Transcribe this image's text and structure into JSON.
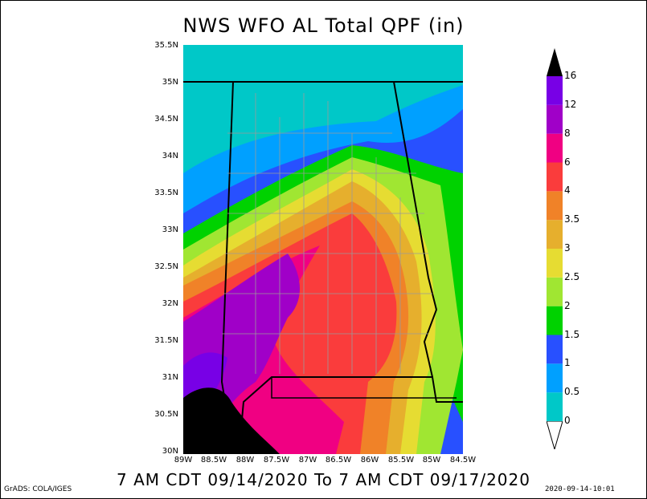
{
  "title": "NWS WFO AL Total QPF (in)",
  "footer": "7 AM CDT 09/14/2020 To 7 AM CDT 09/17/2020",
  "credit": "GrADS: COLA/IGES",
  "timestamp": "2020-09-14-10:01",
  "lat_labels": [
    "35.5N",
    "35N",
    "34.5N",
    "34N",
    "33.5N",
    "33N",
    "32.5N",
    "32N",
    "31.5N",
    "31N",
    "30.5N",
    "30N"
  ],
  "lon_labels": [
    "89W",
    "88.5W",
    "88W",
    "87.5W",
    "87W",
    "86.5W",
    "86W",
    "85.5W",
    "85W",
    "84.5W"
  ],
  "colorbar": {
    "labels": [
      "0",
      "0.5",
      "1",
      "1.5",
      "2",
      "2.5",
      "3",
      "3.5",
      "4",
      "6",
      "8",
      "12",
      "16"
    ],
    "colors": [
      "#00c8c8",
      "#00a0ff",
      "#2850ff",
      "#00d200",
      "#a0e632",
      "#e6dc32",
      "#e6af2d",
      "#f08228",
      "#fa3c3c",
      "#f00082",
      "#a000c8",
      "#7800e6"
    ]
  }
}
